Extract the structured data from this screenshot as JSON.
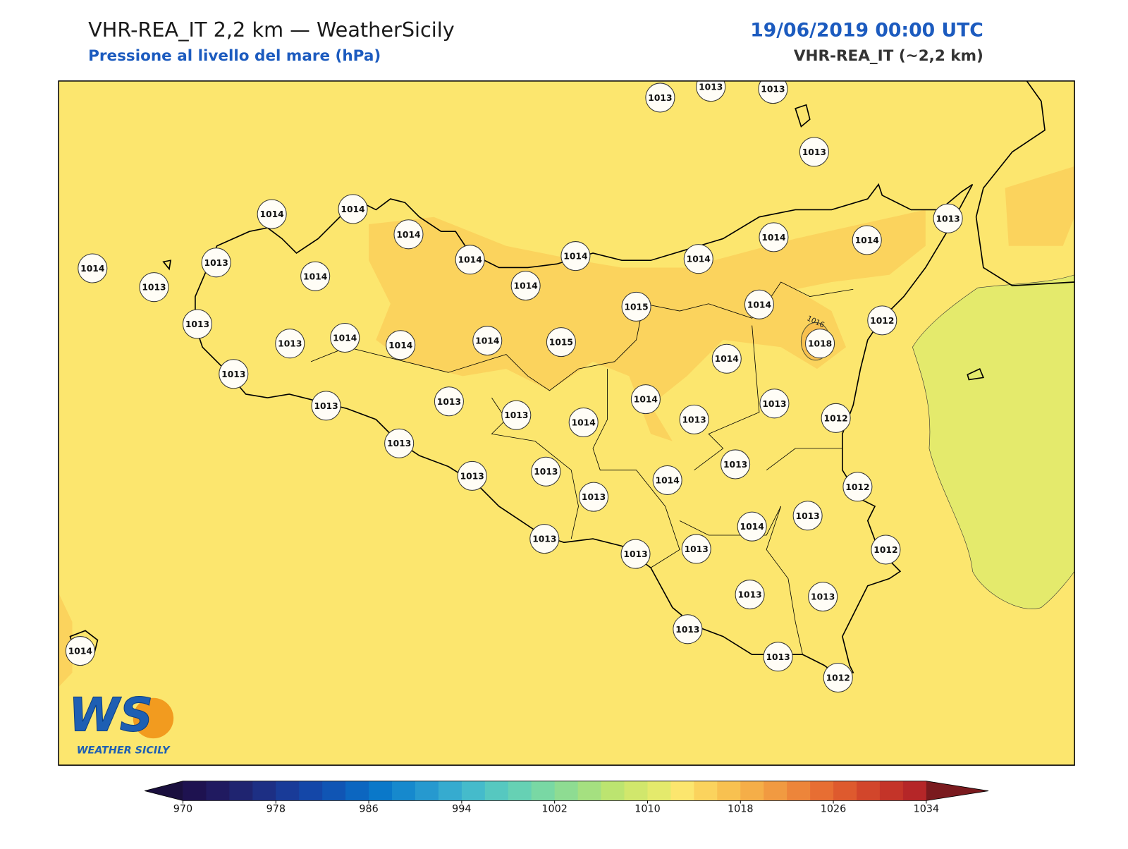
{
  "header": {
    "title": "VHR-REA_IT 2,2 km — WeatherSicily",
    "subtitle": "Pressione al livello del mare (hPa)",
    "datetime": "19/06/2019 00:00 UTC",
    "model": "VHR-REA_IT (~2,2 km)"
  },
  "map": {
    "contour_label": "1016",
    "stations": [
      1013,
      1013,
      1013,
      1013,
      1014,
      1014,
      1014,
      1014,
      1014,
      1014,
      1014,
      1014,
      1014,
      1013,
      1014,
      1013,
      1013,
      1014,
      1013,
      1015,
      1014,
      1012,
      1013,
      1014,
      1014,
      1014,
      1015,
      1018,
      1014,
      1013,
      1013,
      1013,
      1013,
      1014,
      1014,
      1013,
      1013,
      1012,
      1013,
      1013,
      1013,
      1013,
      1014,
      1013,
      1012,
      1013,
      1014,
      1013,
      1013,
      1013,
      1012,
      1013,
      1013,
      1013,
      1013,
      1012,
      1014
    ]
  },
  "colorbar": {
    "range": [
      970,
      1034
    ],
    "ticks": [
      970,
      978,
      986,
      994,
      1002,
      1010,
      1018,
      1026,
      1034
    ],
    "colors": [
      "#1e1250",
      "#201a60",
      "#1f2470",
      "#1d2f84",
      "#193b98",
      "#1447a8",
      "#1055b4",
      "#0c66c0",
      "#0a78c9",
      "#1689cd",
      "#2699cf",
      "#36abcf",
      "#45bbcb",
      "#56c8c0",
      "#66d1b4",
      "#79d8a4",
      "#8edc92",
      "#a5e080",
      "#bce470",
      "#d1e76c",
      "#e4ea6c",
      "#fce66e",
      "#fbd35d",
      "#f8c150",
      "#f5ae48",
      "#f19a41",
      "#ed853a",
      "#e76e33",
      "#de5a2e",
      "#d2462b",
      "#c43429",
      "#b52628"
    ],
    "extend_colors": [
      "#1a0f3e",
      "#7a1a1e"
    ]
  },
  "logo": {
    "initials": "WS",
    "name": "WEATHER SICILY"
  }
}
